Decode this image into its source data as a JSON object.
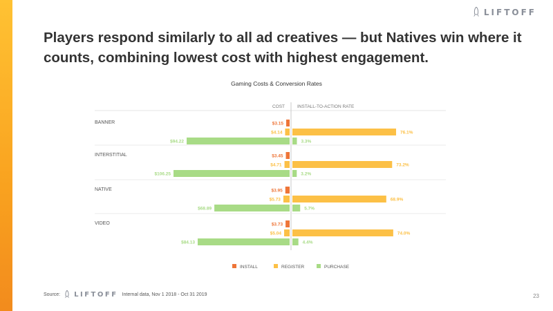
{
  "header": {
    "logo_text": "LIFTOFF",
    "title": "Players respond similarly to all ad creatives — but Natives win where it counts, combining lowest cost with highest engagement."
  },
  "colors": {
    "install": "#ee7538",
    "register": "#fcc046",
    "purchase": "#a8db86",
    "background": "#ffffff",
    "accent": "#f9a21f"
  },
  "chart_data": {
    "type": "bar",
    "title": "Gaming Costs & Conversion Rates",
    "left_header": "COST",
    "right_header": "INSTALL-TO-ACTION RATE",
    "categories": [
      "BANNER",
      "INTERSTITIAL",
      "NATIVE",
      "VIDEO"
    ],
    "series": [
      {
        "name": "INSTALL",
        "cost": [
          3.15,
          3.45,
          3.95,
          3.73
        ],
        "cost_labels": [
          "$3.15",
          "$3.45",
          "$3.95",
          "$3.73"
        ]
      },
      {
        "name": "REGISTER",
        "cost": [
          4.14,
          4.71,
          5.73,
          5.04
        ],
        "cost_labels": [
          "$4.14",
          "$4.71",
          "$5.73",
          "$5.04"
        ],
        "rate": [
          76.1,
          73.2,
          68.9,
          74.0
        ],
        "rate_labels": [
          "76.1%",
          "73.2%",
          "68.9%",
          "74.0%"
        ]
      },
      {
        "name": "PURCHASE",
        "cost": [
          94.22,
          106.25,
          68.89,
          84.13
        ],
        "cost_labels": [
          "$94.22",
          "$106.25",
          "$68.89",
          "$84.13"
        ],
        "rate": [
          3.3,
          3.2,
          5.7,
          4.4
        ],
        "rate_labels": [
          "3.3%",
          "3.2%",
          "5.7%",
          "4.4%"
        ]
      }
    ],
    "cost_axis_max": 106.25,
    "rate_axis_max": 76.1,
    "legend": [
      "INSTALL",
      "REGISTER",
      "PURCHASE"
    ],
    "legend_position": "bottom"
  },
  "footer": {
    "source_label": "Source:",
    "logo_text": "LIFTOFF",
    "note": "Internal data, Nov 1 2018 - Oct 31 2019"
  },
  "page_number": "23"
}
